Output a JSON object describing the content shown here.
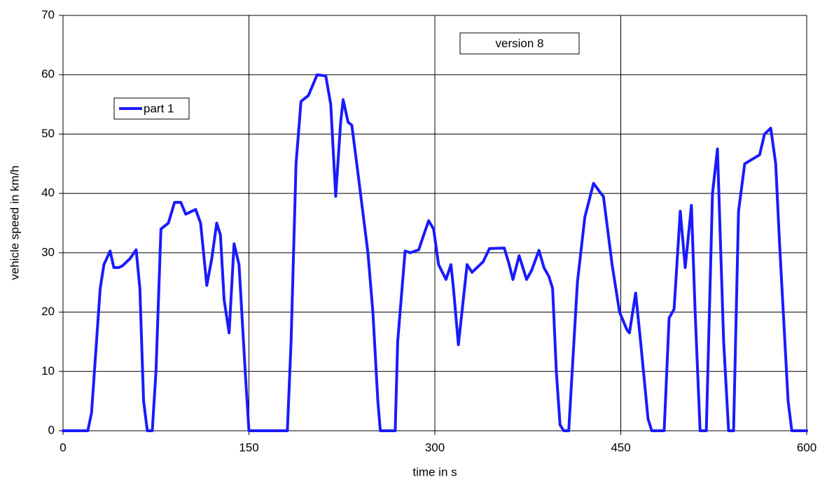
{
  "chart_data": {
    "type": "line",
    "xlabel": "time in s",
    "ylabel": "vehicle speed in km/h",
    "annotation": "version 8",
    "x": [
      0,
      20,
      23,
      27,
      30,
      33,
      38,
      41,
      45,
      48,
      54,
      59,
      62,
      65,
      68,
      72,
      75,
      79,
      85,
      90,
      95,
      99,
      107,
      111,
      116,
      120,
      124,
      127,
      130,
      134,
      138,
      142,
      147,
      150,
      181,
      184,
      188,
      192,
      198,
      205,
      212,
      216,
      220,
      224,
      226,
      230,
      233,
      237,
      246,
      250,
      254,
      256,
      268,
      270,
      276,
      280,
      287,
      291,
      295,
      299,
      303,
      309,
      313,
      315,
      319,
      326,
      330,
      339,
      344,
      356,
      360,
      363,
      368,
      374,
      378,
      384,
      388,
      392,
      395,
      398,
      401,
      404,
      408,
      415,
      421,
      428,
      434,
      436,
      443,
      449,
      455,
      457,
      462,
      466,
      472,
      475,
      485,
      489,
      493,
      498,
      502,
      507,
      510,
      514,
      519,
      524,
      528,
      533,
      537,
      541,
      545,
      550,
      562,
      566,
      571,
      575,
      578,
      585,
      588,
      600
    ],
    "series": [
      {
        "name": "part 1",
        "color": "#1a1aff",
        "values": [
          0,
          0,
          3,
          15,
          24,
          28,
          30.3,
          27.5,
          27.5,
          27.8,
          29,
          30.5,
          24,
          5,
          0,
          0,
          10,
          34,
          35,
          38.5,
          38.5,
          36.5,
          37.3,
          35,
          24.5,
          29,
          35,
          33,
          22,
          16.5,
          31.5,
          28,
          10,
          0,
          0,
          15,
          45,
          55.5,
          56.5,
          60,
          59.8,
          55,
          39.5,
          52,
          55.8,
          52,
          51.5,
          45,
          30,
          20,
          5,
          0,
          0,
          15,
          30.3,
          30,
          30.5,
          33,
          35.4,
          34,
          28,
          25.5,
          28,
          24,
          14.5,
          28,
          26.7,
          28.5,
          30.7,
          30.8,
          28,
          25.5,
          29.5,
          25.5,
          27,
          30.4,
          27.5,
          26,
          24,
          10,
          1,
          0,
          0,
          25,
          36,
          41.7,
          40,
          39.5,
          28,
          20,
          17,
          16.5,
          23.2,
          15,
          2,
          0,
          0,
          19,
          20.5,
          37,
          27.5,
          38,
          20,
          0,
          0,
          40,
          47.5,
          15,
          0,
          0,
          37,
          45,
          46.5,
          50,
          51,
          45,
          32,
          5,
          0,
          0
        ]
      }
    ],
    "xlim": [
      0,
      600
    ],
    "xticks": [
      0,
      150,
      300,
      450,
      600
    ],
    "ylim": [
      0,
      70
    ],
    "yticks": [
      0,
      10,
      20,
      30,
      40,
      50,
      60,
      70
    ],
    "grid": true
  }
}
